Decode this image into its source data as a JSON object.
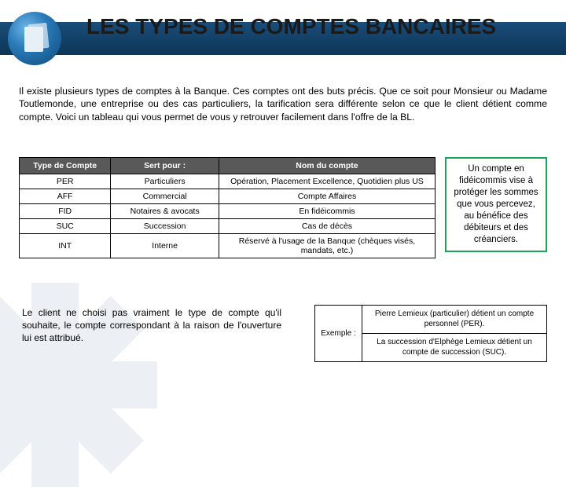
{
  "title": "LES TYPES DE COMPTES BANCAIRES",
  "intro": "Il existe plusieurs types de comptes à la Banque. Ces comptes ont des buts précis. Que ce soit pour Monsieur ou Madame Toutlemonde, une entreprise ou des cas particuliers, la tarification sera différente selon ce que le client détient comme compte. Voici un tableau qui vous permet de vous y retrouver facilement dans l'offre de la BL.",
  "account_table": {
    "headers": [
      "Type de Compte",
      "Sert pour :",
      "Nom du compte"
    ],
    "rows": [
      [
        "PER",
        "Particuliers",
        "Opération, Placement Excellence, Quotidien plus US"
      ],
      [
        "AFF",
        "Commercial",
        "Compte Affaires"
      ],
      [
        "FID",
        "Notaires & avocats",
        "En fidéicommis"
      ],
      [
        "SUC",
        "Succession",
        "Cas de décès"
      ],
      [
        "INT",
        "Interne",
        "Réservé à l'usage de la Banque (chèques visés, mandats, etc.)"
      ]
    ],
    "header_bg": "#595959",
    "header_fg": "#ffffff",
    "border_color": "#000000"
  },
  "callout": {
    "text": "Un compte en fidéicommis vise à protéger les sommes que vous percevez, au bénéfice des débiteurs et des créanciers.",
    "border_color": "#18a558"
  },
  "left_note": "Le client ne choisi pas vraiment le type de compte qu'il souhaite, le compte correspondant à la raison de l'ouverture lui est attribué.",
  "example": {
    "label": "Exemple :",
    "items": [
      "Pierre Lemieux (particulier) détient un compte personnel (PER).",
      "La succession d'Elphège Lemieux détient un compte de succession (SUC)."
    ]
  },
  "colors": {
    "band_top": "#1a4d7a",
    "band_bottom": "#0d3556",
    "icon_light": "#6bb5e8",
    "icon_dark": "#0d4a7a"
  }
}
